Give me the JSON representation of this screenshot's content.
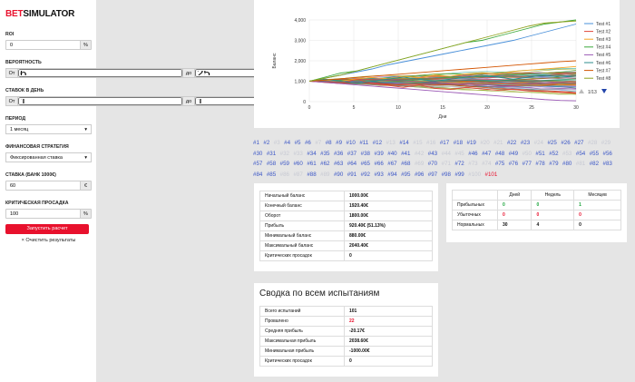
{
  "logo": {
    "part1": "BET",
    "part2": "SIMULATOR"
  },
  "form": {
    "roi_label": "ROI",
    "roi_value": "0",
    "pct": "%",
    "prob_label": "ВЕРОЯТНОСТЬ",
    "from": "От",
    "to": "до",
    "prob_from": "6",
    "prob_to": "25",
    "bets_label": "СТАВОК В ДЕНЬ",
    "bets_from": "1",
    "bets_to": "1",
    "period_label": "ПЕРИОД",
    "period_value": "1 месяц",
    "strategy_label": "ФИНАНСОВАЯ СТРАТЕГИЯ",
    "strategy_value": "Фиксированная ставка",
    "stake_label": "СТАВКА (БАНК 1000€)",
    "stake_value": "60",
    "euro": "€",
    "drawdown_label": "КРИТИЧЕСКАЯ ПРОСАДКА",
    "drawdown_value": "100",
    "run_label": "Запустить расчет",
    "clear_label": "× Очистить результаты"
  },
  "chart_data": {
    "type": "line",
    "ylabel": "Баланс",
    "xlabel": "Дни",
    "xlim": [
      0,
      30
    ],
    "ylim": [
      0,
      4000
    ],
    "xticks": [
      "0",
      "5",
      "10",
      "15",
      "20",
      "25",
      "30"
    ],
    "yticks": [
      "0",
      "1,000",
      "2,000",
      "3,000",
      "4,000"
    ],
    "legend_position": "right",
    "series": [
      {
        "name": "Test #1",
        "color": "#4a90d9",
        "values": [
          1000,
          1150,
          1300,
          1450,
          1600,
          1800,
          1950,
          2100,
          2250,
          2400,
          2550,
          2700,
          2850,
          3000,
          3200,
          3400,
          3600,
          3800
        ]
      },
      {
        "name": "Test #2",
        "color": "#e0473b",
        "values": [
          1000,
          950,
          880,
          1100,
          900,
          800,
          700,
          820,
          650,
          600,
          700,
          620,
          560,
          600,
          520,
          500,
          480,
          420
        ]
      },
      {
        "name": "Test #3",
        "color": "#f5a623",
        "values": [
          1000,
          1060,
          1000,
          1120,
          1180,
          1120,
          1240,
          1180,
          1300,
          1240,
          1360,
          1420,
          1360,
          1480,
          1540,
          1600,
          1660,
          1720
        ]
      },
      {
        "name": "Test #4",
        "color": "#3aa83a",
        "values": [
          1000,
          1200,
          1400,
          1500,
          1700,
          1900,
          2100,
          2300,
          2500,
          2700,
          2900,
          3000,
          3200,
          3400,
          3600,
          3800,
          3900,
          4000
        ]
      },
      {
        "name": "Test #5",
        "color": "#9b59b6",
        "values": [
          1000,
          940,
          880,
          820,
          760,
          700,
          640,
          580,
          520,
          460,
          400,
          340,
          280,
          220,
          160,
          100,
          60,
          40
        ]
      },
      {
        "name": "Test #6",
        "color": "#2c8c8c",
        "values": [
          1000,
          1100,
          1000,
          900,
          1000,
          1100,
          1200,
          1100,
          1000,
          1100,
          1200,
          1300,
          1200,
          1100,
          1200,
          1300,
          1200,
          1250
        ]
      },
      {
        "name": "Test #7",
        "color": "#d35400",
        "values": [
          1000,
          1060,
          1120,
          1180,
          1240,
          1300,
          1360,
          1420,
          1480,
          1540,
          1600,
          1660,
          1720,
          1780,
          1840,
          1900,
          1960,
          2000
        ]
      },
      {
        "name": "Test #8",
        "color": "#8fa31f",
        "values": [
          1000,
          1150,
          1300,
          1500,
          1700,
          1900,
          2100,
          2300,
          2500,
          2700,
          2900,
          3100,
          3300,
          3500,
          3700,
          3850,
          3900,
          3950
        ]
      }
    ],
    "legend_page": "1/13"
  },
  "tests": {
    "labels": [
      "#1",
      "#2",
      "#3",
      "#4",
      "#5",
      "#6",
      "#7",
      "#8",
      "#9",
      "#10",
      "#11",
      "#12",
      "#13",
      "#14",
      "#15",
      "#16",
      "#17",
      "#18",
      "#19",
      "#20",
      "#21",
      "#22",
      "#23",
      "#24",
      "#25",
      "#26",
      "#27",
      "#28",
      "#29",
      "#30",
      "#31",
      "#32",
      "#33",
      "#34",
      "#35",
      "#36",
      "#37",
      "#38",
      "#39",
      "#40",
      "#41",
      "#42",
      "#43",
      "#44",
      "#45",
      "#46",
      "#47",
      "#48",
      "#49",
      "#50",
      "#51",
      "#52",
      "#53",
      "#54",
      "#55",
      "#56",
      "#57",
      "#58",
      "#59",
      "#60",
      "#61",
      "#62",
      "#63",
      "#64",
      "#65",
      "#66",
      "#67",
      "#68",
      "#69",
      "#70",
      "#71",
      "#72",
      "#73",
      "#74",
      "#75",
      "#76",
      "#77",
      "#78",
      "#79",
      "#80",
      "#81",
      "#82",
      "#83",
      "#84",
      "#85",
      "#86",
      "#87",
      "#88",
      "#89",
      "#90",
      "#91",
      "#92",
      "#93",
      "#94",
      "#95",
      "#96",
      "#97",
      "#98",
      "#99",
      "#100",
      "#101"
    ],
    "dimmed": [
      "#3",
      "#7",
      "#13",
      "#15",
      "#16",
      "#20",
      "#21",
      "#24",
      "#28",
      "#29",
      "#32",
      "#33",
      "#42",
      "#44",
      "#45",
      "#50",
      "#53",
      "#69",
      "#71",
      "#73",
      "#74",
      "#81",
      "#86",
      "#87",
      "#89",
      "#100"
    ],
    "failed": [
      "#101"
    ]
  },
  "stats": [
    {
      "label": "Начальный баланс",
      "value": "1000.00€"
    },
    {
      "label": "Конечный баланс",
      "value": "1920.40€"
    },
    {
      "label": "Оборот",
      "value": "1800.00€"
    },
    {
      "label": "Прибыль",
      "value": "920.40€ (51.13%)"
    },
    {
      "label": "Минимальный баланс",
      "value": "880.00€"
    },
    {
      "label": "Максимальный баланс",
      "value": "2040.40€"
    },
    {
      "label": "Критических просадок",
      "value": "0"
    }
  ],
  "periods": {
    "headers": [
      "",
      "Дней",
      "Недель",
      "Месяцев"
    ],
    "rows": [
      {
        "label": "Прибыльных",
        "days": "0",
        "weeks": "0",
        "months": "1"
      },
      {
        "label": "Убыточных",
        "days": "0",
        "weeks": "0",
        "months": "0"
      },
      {
        "label": "Нормальных",
        "days": "30",
        "weeks": "4",
        "months": "0"
      }
    ]
  },
  "summary": {
    "title": "Сводка по всем испытаниям",
    "rows": [
      {
        "label": "Всего испытаний",
        "value": "101"
      },
      {
        "label": "Провалено",
        "value": "22"
      },
      {
        "label": "Средняя прибыль",
        "value": "-20.17€"
      },
      {
        "label": "Максимальная прибыль",
        "value": "2038.60€"
      },
      {
        "label": "Минимальная прибыль",
        "value": "-1000.00€"
      },
      {
        "label": "Критических просадок",
        "value": "0"
      }
    ]
  }
}
